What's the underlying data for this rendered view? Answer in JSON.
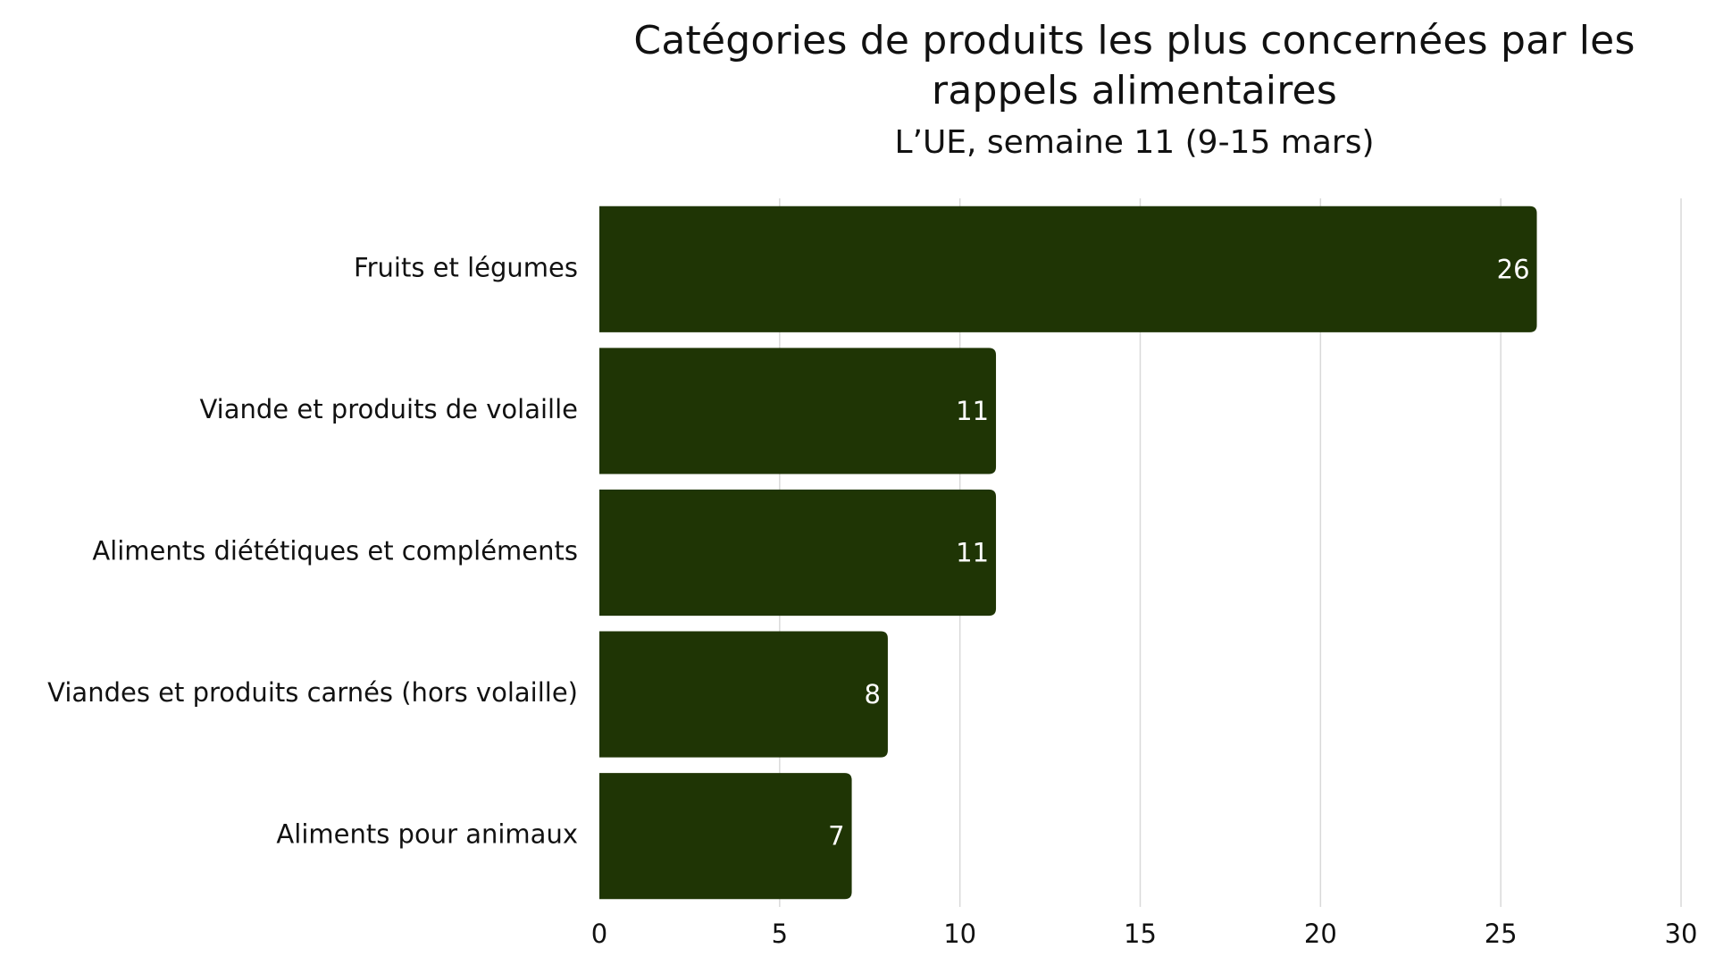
{
  "chart_data": {
    "type": "bar",
    "orientation": "horizontal",
    "title": "Catégories de produits les plus concernées par les rappels alimentaires",
    "subtitle": "L’UE, semaine 11 (9-15 mars)",
    "categories": [
      "Fruits et légumes",
      "Viande et produits de volaille",
      "Aliments diététiques et compléments",
      "Viandes et produits carnés (hors volaille)",
      "Aliments pour animaux"
    ],
    "values": [
      26,
      11,
      11,
      8,
      7
    ],
    "xlim": [
      0,
      30
    ],
    "xticks": [
      0,
      5,
      10,
      15,
      20,
      25,
      30
    ],
    "grid": "vertical",
    "data_labels": true,
    "bar_color": "#1f3505",
    "grid_color": "#d9d9d9"
  }
}
